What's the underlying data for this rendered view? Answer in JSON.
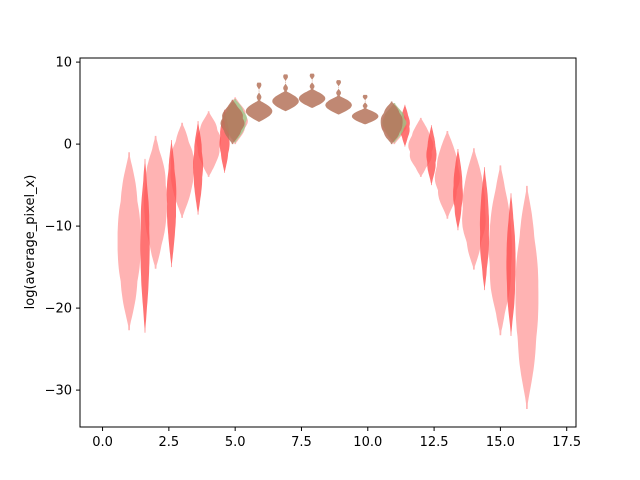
{
  "chart_data": {
    "type": "violin",
    "title": "",
    "xlabel": "",
    "ylabel": "log(average_pixel_x)",
    "xlim": [
      -0.85,
      17.85
    ],
    "ylim": [
      -34.5,
      10.5
    ],
    "xticks": [
      0.0,
      2.5,
      5.0,
      7.5,
      10.0,
      12.5,
      15.0,
      17.5
    ],
    "xtick_labels": [
      "0.0",
      "2.5",
      "5.0",
      "7.5",
      "10.0",
      "12.5",
      "15.0",
      "17.5"
    ],
    "yticks": [
      10,
      0,
      -10,
      -20,
      -30
    ],
    "ytick_labels": [
      "10",
      "0",
      "−10",
      "−20",
      "−30"
    ],
    "grid": false,
    "colors": {
      "light_red": "#ff9a9a",
      "dark_red": "#ff5050",
      "green": "#8fd08a",
      "brown": "#b5735a"
    },
    "series": [
      {
        "color": "light_red",
        "opacity": 0.75,
        "violins": [
          {
            "x": 1.0,
            "ymin": -22.7,
            "ymax": -1.0,
            "width": 1.0
          },
          {
            "x": 2.0,
            "ymin": -15.2,
            "ymax": 1.0,
            "width": 1.0
          },
          {
            "x": 3.0,
            "ymin": -9.0,
            "ymax": 2.6,
            "width": 1.0
          },
          {
            "x": 4.0,
            "ymin": -4.0,
            "ymax": 4.0,
            "width": 1.0
          },
          {
            "x": 5.0,
            "ymin": 0.0,
            "ymax": 5.7,
            "width": 1.0
          },
          {
            "x": 11.0,
            "ymin": 0.0,
            "ymax": 5.0,
            "width": 1.0
          },
          {
            "x": 12.0,
            "ymin": -4.0,
            "ymax": 3.2,
            "width": 1.0
          },
          {
            "x": 13.0,
            "ymin": -9.1,
            "ymax": 1.6,
            "width": 1.0
          },
          {
            "x": 14.0,
            "ymin": -15.3,
            "ymax": -0.5,
            "width": 1.0
          },
          {
            "x": 15.0,
            "ymin": -23.3,
            "ymax": -2.6,
            "width": 1.0
          },
          {
            "x": 16.0,
            "ymin": -32.3,
            "ymax": -5.1,
            "width": 1.0
          }
        ]
      },
      {
        "color": "dark_red",
        "opacity": 0.8,
        "violins": [
          {
            "x": 1.6,
            "ymin": -23.0,
            "ymax": -1.8,
            "width": 0.4
          },
          {
            "x": 2.6,
            "ymin": -15.0,
            "ymax": 0.5,
            "width": 0.4
          },
          {
            "x": 3.6,
            "ymin": -8.6,
            "ymax": 2.8,
            "width": 0.4
          },
          {
            "x": 4.6,
            "ymin": -3.5,
            "ymax": 4.2,
            "width": 0.4
          },
          {
            "x": 11.4,
            "ymin": -0.3,
            "ymax": 4.8,
            "width": 0.4
          },
          {
            "x": 12.4,
            "ymin": -5.0,
            "ymax": 2.3,
            "width": 0.4
          },
          {
            "x": 13.4,
            "ymin": -10.5,
            "ymax": -0.6,
            "width": 0.4
          },
          {
            "x": 14.4,
            "ymin": -17.8,
            "ymax": -2.8,
            "width": 0.4
          },
          {
            "x": 15.4,
            "ymin": -23.4,
            "ymax": -6.0,
            "width": 0.4
          }
        ]
      },
      {
        "color": "green",
        "opacity": 0.7,
        "violins": [
          {
            "x": 5.0,
            "ymin": 0.2,
            "ymax": 5.5,
            "width": 0.95
          },
          {
            "x": 11.0,
            "ymin": 0.2,
            "ymax": 5.0,
            "width": 0.95
          }
        ]
      },
      {
        "color": "brown",
        "opacity": 0.85,
        "violins": [
          {
            "x": 4.9,
            "ymin": 0.0,
            "ymax": 5.4,
            "width": 0.95
          },
          {
            "x": 5.9,
            "ymin": 2.7,
            "ymax": 7.5,
            "width": 1.0
          },
          {
            "x": 6.9,
            "ymin": 4.0,
            "ymax": 8.5,
            "width": 1.0
          },
          {
            "x": 7.9,
            "ymin": 4.4,
            "ymax": 8.6,
            "width": 1.0
          },
          {
            "x": 8.9,
            "ymin": 3.6,
            "ymax": 7.8,
            "width": 1.0
          },
          {
            "x": 9.9,
            "ymin": 2.4,
            "ymax": 6.0,
            "width": 1.0
          },
          {
            "x": 10.9,
            "ymin": 0.0,
            "ymax": 5.2,
            "width": 0.95
          }
        ]
      }
    ]
  }
}
